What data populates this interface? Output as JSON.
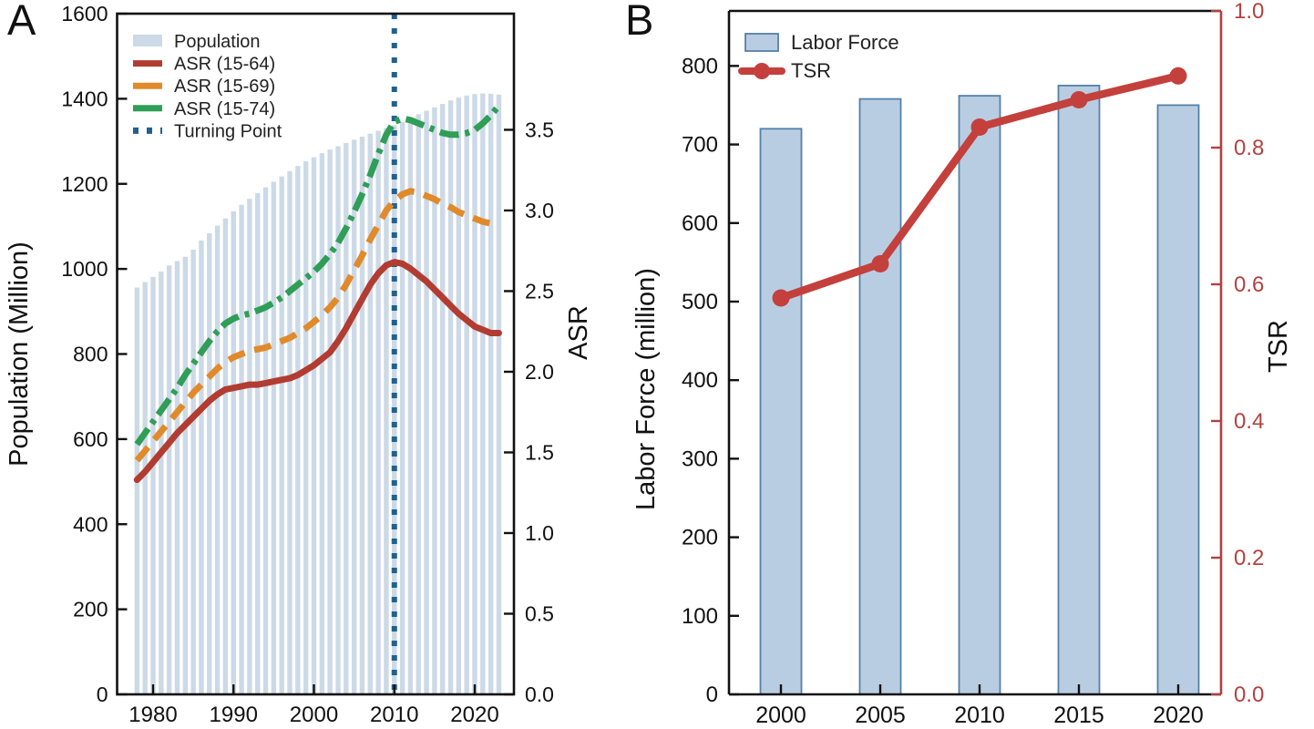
{
  "figure": {
    "panels": [
      {
        "letter": "A"
      },
      {
        "letter": "B"
      }
    ]
  },
  "colors": {
    "bar_fill_a": "#ccd9e7",
    "bar_fill_b": "#b9cde2",
    "bar_stroke_b": "#5580a8",
    "asr_15_64": "#b23c31",
    "asr_15_69": "#e08a2c",
    "asr_15_74": "#2f9e56",
    "turning_point": "#21618e",
    "tsr_line": "#c4403c",
    "tsr_axis": "#b4413e",
    "axis_black": "#111111"
  },
  "chart_data": [
    {
      "id": "panel-a",
      "type": "bar+line",
      "title": "",
      "xlabel": "",
      "ylabel_left": "Population (Million)",
      "ylabel_right": "ASR",
      "x": [
        1978,
        1979,
        1980,
        1981,
        1982,
        1983,
        1984,
        1985,
        1986,
        1987,
        1988,
        1989,
        1990,
        1991,
        1992,
        1993,
        1994,
        1995,
        1996,
        1997,
        1998,
        1999,
        2000,
        2001,
        2002,
        2003,
        2004,
        2005,
        2006,
        2007,
        2008,
        2009,
        2010,
        2011,
        2012,
        2013,
        2014,
        2015,
        2016,
        2017,
        2018,
        2019,
        2020,
        2021,
        2022,
        2023
      ],
      "bars": {
        "name": "Population",
        "axis": "left",
        "values": [
          956.2,
          969.1,
          981.2,
          993.9,
          1008.2,
          1018.5,
          1028.7,
          1045.3,
          1066.8,
          1084.0,
          1101.6,
          1118.7,
          1135.2,
          1150.8,
          1164.9,
          1178.4,
          1191.8,
          1204.9,
          1217.3,
          1230.0,
          1241.9,
          1252.9,
          1262.6,
          1271.9,
          1280.5,
          1288.4,
          1296.1,
          1303.7,
          1311.0,
          1317.9,
          1324.7,
          1331.3,
          1337.7,
          1345.4,
          1354.0,
          1363.5,
          1371.9,
          1379.9,
          1387.9,
          1396.2,
          1402.8,
          1407.7,
          1411.1,
          1412.6,
          1411.8,
          1409.7
        ]
      },
      "series": [
        {
          "name": "ASR (15-64)",
          "axis": "right",
          "style": "solid",
          "values": [
            1.33,
            1.38,
            1.44,
            1.5,
            1.56,
            1.62,
            1.67,
            1.72,
            1.77,
            1.82,
            1.86,
            1.89,
            1.9,
            1.91,
            1.92,
            1.92,
            1.93,
            1.94,
            1.95,
            1.96,
            1.98,
            2.01,
            2.04,
            2.08,
            2.12,
            2.19,
            2.27,
            2.36,
            2.45,
            2.54,
            2.61,
            2.66,
            2.68,
            2.67,
            2.64,
            2.6,
            2.56,
            2.51,
            2.46,
            2.41,
            2.36,
            2.32,
            2.28,
            2.26,
            2.24,
            2.24
          ]
        },
        {
          "name": "ASR (15-69)",
          "axis": "right",
          "style": "dashed",
          "values": [
            1.45,
            1.51,
            1.57,
            1.63,
            1.69,
            1.75,
            1.81,
            1.87,
            1.92,
            1.97,
            2.02,
            2.06,
            2.09,
            2.11,
            2.13,
            2.14,
            2.15,
            2.17,
            2.19,
            2.21,
            2.24,
            2.27,
            2.31,
            2.35,
            2.4,
            2.46,
            2.54,
            2.63,
            2.72,
            2.82,
            2.91,
            3.0,
            3.06,
            3.1,
            3.12,
            3.11,
            3.09,
            3.07,
            3.04,
            3.02,
            2.99,
            2.97,
            2.95,
            2.93,
            2.92,
            2.92
          ]
        },
        {
          "name": "ASR (15-74)",
          "axis": "right",
          "style": "dashdot",
          "values": [
            1.55,
            1.62,
            1.69,
            1.76,
            1.83,
            1.9,
            1.98,
            2.05,
            2.12,
            2.19,
            2.25,
            2.3,
            2.33,
            2.35,
            2.36,
            2.38,
            2.4,
            2.43,
            2.46,
            2.5,
            2.54,
            2.58,
            2.62,
            2.67,
            2.73,
            2.8,
            2.89,
            2.99,
            3.1,
            3.22,
            3.35,
            3.47,
            3.55,
            3.57,
            3.56,
            3.54,
            3.52,
            3.5,
            3.48,
            3.47,
            3.47,
            3.48,
            3.5,
            3.54,
            3.59,
            3.65
          ]
        }
      ],
      "annotations": [
        {
          "type": "vline",
          "name": "Turning Point",
          "x": 2010,
          "style": "dotted"
        }
      ],
      "legend": [
        "Population",
        "ASR (15-64)",
        "ASR (15-69)",
        "ASR (15-74)",
        "Turning Point"
      ],
      "legend_position": "upper-left",
      "grid": false,
      "ylim_left": [
        0,
        1600
      ],
      "ylim_right": [
        0,
        4.22
      ],
      "yticks_left": [
        "0",
        "200",
        "400",
        "600",
        "800",
        "1000",
        "1200",
        "1400",
        "1600"
      ],
      "yticks_right": [
        "0.0",
        "0.5",
        "1.0",
        "1.5",
        "2.0",
        "2.5",
        "3.0",
        "3.5"
      ],
      "xticks": [
        "1980",
        "1990",
        "2000",
        "2010",
        "2020"
      ]
    },
    {
      "id": "panel-b",
      "type": "bar+line",
      "title": "",
      "xlabel": "",
      "ylabel_left": "Labor Force (million)",
      "ylabel_right": "TSR",
      "categories": [
        "2000",
        "2005",
        "2010",
        "2015",
        "2020"
      ],
      "bars": {
        "name": "Labor Force",
        "axis": "left",
        "values": [
          720,
          758,
          762,
          775,
          750
        ]
      },
      "line": {
        "name": "TSR",
        "axis": "right",
        "values": [
          0.58,
          0.63,
          0.83,
          0.87,
          0.905
        ]
      },
      "legend": [
        "Labor Force",
        "TSR"
      ],
      "legend_position": "upper-left",
      "grid": false,
      "ylim_left": [
        0,
        870
      ],
      "ylim_right": [
        0.0,
        1.0
      ],
      "yticks_left": [
        "0",
        "100",
        "200",
        "300",
        "400",
        "500",
        "600",
        "700",
        "800"
      ],
      "yticks_right": [
        "0.0",
        "0.2",
        "0.4",
        "0.6",
        "0.8",
        "1.0"
      ],
      "xticks": [
        "2000",
        "2005",
        "2010",
        "2015",
        "2020"
      ]
    }
  ]
}
